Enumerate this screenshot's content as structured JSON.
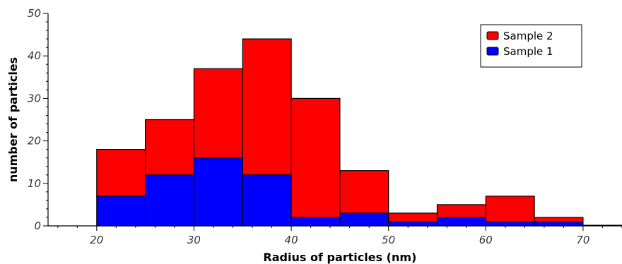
{
  "chart_data": {
    "type": "bar",
    "stacked": true,
    "histogram": true,
    "bin_edges": [
      20,
      25,
      30,
      35,
      40,
      45,
      50,
      55,
      60,
      65,
      70
    ],
    "series": [
      {
        "name": "Sample 1",
        "color": "#0000ff",
        "values": [
          7,
          12,
          16,
          12,
          2,
          3,
          1,
          2,
          1,
          1
        ]
      },
      {
        "name": "Sample 2",
        "color": "#ff0000",
        "values": [
          11,
          13,
          21,
          32,
          28,
          10,
          2,
          3,
          6,
          1
        ]
      }
    ],
    "xlabel": "Radius of particles (nm)",
    "ylabel": "number of particles",
    "xlim": [
      15,
      74
    ],
    "ylim": [
      0,
      50
    ],
    "xticks": [
      20,
      30,
      40,
      50,
      60,
      70
    ],
    "yticks": [
      0,
      10,
      20,
      30,
      40,
      50
    ],
    "grid": false,
    "legend_position": "top-right",
    "legend_order": [
      "Sample 2",
      "Sample 1"
    ]
  }
}
